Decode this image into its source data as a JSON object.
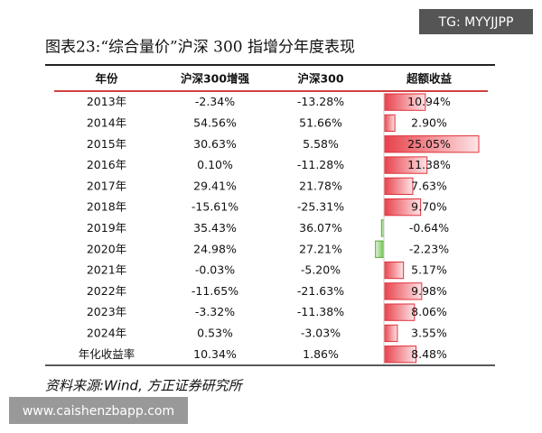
{
  "watermark_top": "TG: MYYJJPP",
  "title": "图表23:“综合量价”沪深 300 指增分年度表现",
  "table": {
    "header": [
      "年份",
      "沪深300增强",
      "沪深300",
      "超额收益"
    ],
    "rows": [
      [
        "2013年",
        "-2.34%",
        "-13.28%",
        "10.94%"
      ],
      [
        "2014年",
        "54.56%",
        "51.66%",
        "2.90%"
      ],
      [
        "2015年",
        "30.63%",
        "5.58%",
        "25.05%"
      ],
      [
        "2016年",
        "0.10%",
        "-11.28%",
        "11.38%"
      ],
      [
        "2017年",
        "29.41%",
        "21.78%",
        "7.63%"
      ],
      [
        "2018年",
        "-15.61%",
        "-25.31%",
        "9.70%"
      ],
      [
        "2019年",
        "35.43%",
        "36.07%",
        "-0.64%"
      ],
      [
        "2020年",
        "24.98%",
        "27.21%",
        "-2.23%"
      ],
      [
        "2021年",
        "-0.03%",
        "-5.20%",
        "5.17%"
      ],
      [
        "2022年",
        "-11.65%",
        "-21.63%",
        "9.98%"
      ],
      [
        "2023年",
        "-3.32%",
        "-11.38%",
        "8.06%"
      ],
      [
        "2024年",
        "0.53%",
        "-3.03%",
        "3.55%"
      ],
      [
        "年化收益率",
        "10.34%",
        "1.86%",
        "8.48%"
      ]
    ]
  },
  "source": "资料来源:Wind, 方正证券研究所",
  "watermark_bottom": "www.caishenzbapp.com"
}
